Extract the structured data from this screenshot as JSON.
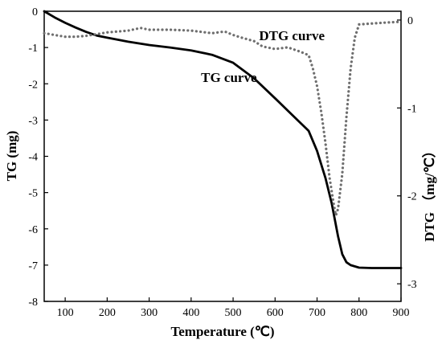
{
  "chart_data": {
    "type": "line",
    "xlabel": "Temperature (℃)",
    "ylabel": "TG (mg)",
    "y2label": "DTG （mg/℃）",
    "xlim": [
      50,
      900
    ],
    "ylim": [
      -8,
      0
    ],
    "y2lim": [
      -3.2,
      0.1
    ],
    "x_ticks": [
      "100",
      "200",
      "300",
      "400",
      "500",
      "600",
      "700",
      "800",
      "900"
    ],
    "y_ticks": [
      "0",
      "-1",
      "-2",
      "-3",
      "-4",
      "-5",
      "-6",
      "-7",
      "-8"
    ],
    "y2_ticks": [
      "0",
      "-1",
      "-2",
      "-3"
    ],
    "series": [
      {
        "name": "TG curve",
        "axis": "left",
        "style": "solid",
        "color": "#000000",
        "x": [
          50,
          75,
          100,
          125,
          150,
          175,
          200,
          250,
          300,
          350,
          400,
          450,
          500,
          550,
          600,
          640,
          680,
          700,
          720,
          735,
          750,
          760,
          770,
          780,
          800,
          830,
          860,
          900
        ],
        "y": [
          0,
          -0.17,
          -0.32,
          -0.45,
          -0.57,
          -0.67,
          -0.73,
          -0.84,
          -0.93,
          -1.0,
          -1.08,
          -1.2,
          -1.42,
          -1.85,
          -2.4,
          -2.85,
          -3.3,
          -3.85,
          -4.6,
          -5.3,
          -6.2,
          -6.7,
          -6.92,
          -7.0,
          -7.07,
          -7.08,
          -7.08,
          -7.08
        ]
      },
      {
        "name": "DTG curve",
        "axis": "right",
        "style": "dotted",
        "color": "#6e6e6e",
        "x": [
          50,
          75,
          100,
          125,
          150,
          200,
          250,
          280,
          300,
          350,
          400,
          450,
          480,
          500,
          520,
          550,
          570,
          600,
          630,
          660,
          680,
          690,
          700,
          710,
          720,
          730,
          740,
          745,
          750,
          760,
          770,
          780,
          790,
          800,
          830,
          860,
          900
        ],
        "y": [
          -0.15,
          -0.17,
          -0.19,
          -0.19,
          -0.18,
          -0.14,
          -0.12,
          -0.09,
          -0.11,
          -0.11,
          -0.12,
          -0.15,
          -0.13,
          -0.17,
          -0.2,
          -0.24,
          -0.3,
          -0.33,
          -0.31,
          -0.36,
          -0.4,
          -0.55,
          -0.75,
          -1.05,
          -1.4,
          -1.8,
          -2.1,
          -2.22,
          -2.15,
          -1.75,
          -1.1,
          -0.55,
          -0.2,
          -0.05,
          -0.04,
          -0.03,
          -0.02
        ]
      }
    ],
    "annotations": [
      {
        "text": "DTG curve",
        "x": 640,
        "y": -0.8
      },
      {
        "text": "TG curve",
        "x": 490,
        "y": -1.95
      }
    ],
    "grid": false
  }
}
